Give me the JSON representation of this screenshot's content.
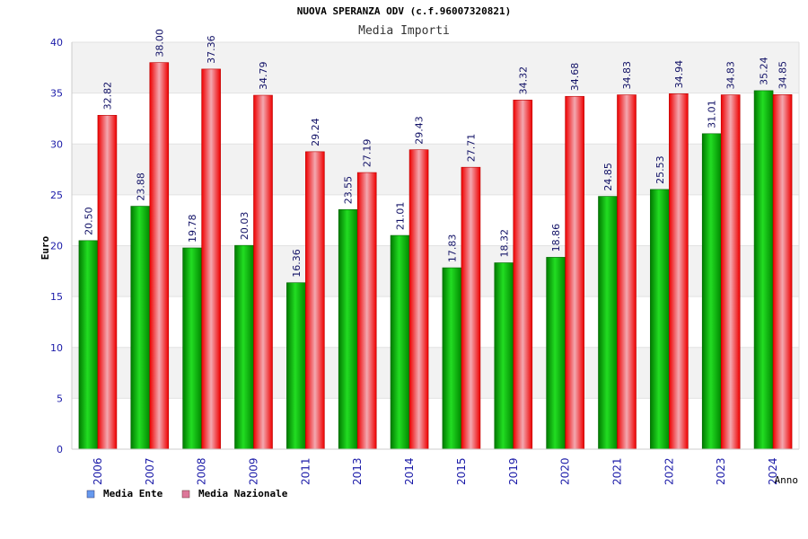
{
  "chart_data": {
    "type": "bar",
    "title": "NUOVA SPERANZA ODV (c.f.96007320821)",
    "subtitle": "Media Importi",
    "ylabel": "Euro",
    "xlabel": "Anno",
    "ylim": [
      0,
      40
    ],
    "yticks": [
      0,
      5,
      10,
      15,
      20,
      25,
      30,
      35,
      40
    ],
    "grid": true,
    "legend_position": "bottom-left",
    "categories": [
      "2006",
      "2007",
      "2008",
      "2009",
      "2011",
      "2013",
      "2014",
      "2015",
      "2019",
      "2020",
      "2021",
      "2022",
      "2023",
      "2024"
    ],
    "series": [
      {
        "name": "Media Ente",
        "color": "#00aa00",
        "legend_color": "#6699ee",
        "values": [
          20.5,
          23.88,
          19.78,
          20.03,
          16.36,
          23.55,
          21.01,
          17.83,
          18.32,
          18.86,
          24.85,
          25.53,
          31.01,
          35.24
        ],
        "labels": [
          "20.50",
          "23.88",
          "19.78",
          "20.03",
          "16.36",
          "23.55",
          "21.01",
          "17.83",
          "18.32",
          "18.86",
          "24.85",
          "25.53",
          "31.01",
          "35.24"
        ]
      },
      {
        "name": "Media Nazionale",
        "color": "#ee1111",
        "legend_color": "#dd7799",
        "values": [
          32.82,
          38.0,
          37.36,
          34.79,
          29.24,
          27.19,
          29.43,
          27.71,
          34.32,
          34.68,
          34.83,
          34.94,
          34.83,
          34.85
        ],
        "labels": [
          "32.82",
          "38.00",
          "37.36",
          "34.79",
          "29.24",
          "27.19",
          "29.43",
          "27.71",
          "34.32",
          "34.68",
          "34.83",
          "34.94",
          "34.83",
          "34.85"
        ]
      }
    ]
  }
}
